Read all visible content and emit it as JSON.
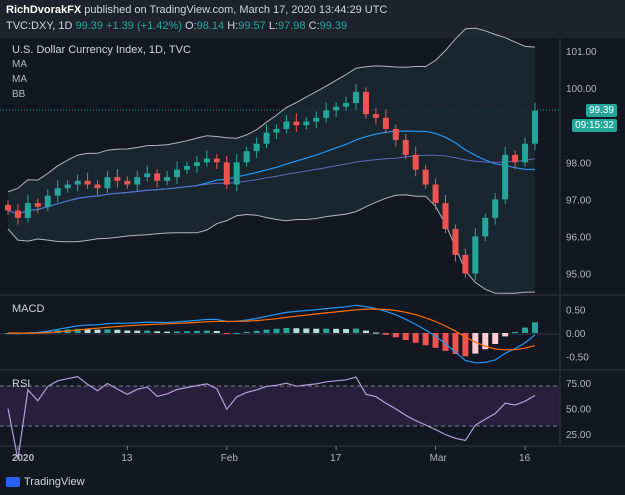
{
  "header": {
    "publisher": "RichDvorakFX",
    "published_text": "published on TradingView.com, March 17, 2020 13:44:29 UTC",
    "symbol": "TVC:DXY, 1D",
    "last": "99.39",
    "change": "+1.39 (+1.42%)",
    "open_label": "O:",
    "open": "98.14",
    "high_label": "H:",
    "high": "99.57",
    "low_label": "L:",
    "low": "97.98",
    "close_label": "C:",
    "close": "99.39"
  },
  "main_pane": {
    "title": "U.S. Dollar Currency Index, 1D, TVC",
    "indicators": [
      "MA",
      "MA",
      "BB"
    ],
    "price_badge": "99.39",
    "time_badge": "09:15:32"
  },
  "macd_pane": {
    "title": "MACD"
  },
  "rsi_pane": {
    "title": "RSI"
  },
  "x_labels": [
    "2020",
    "13",
    "Feb",
    "17",
    "Mar",
    "16"
  ],
  "brand": {
    "name": "TradingView"
  },
  "colors": {
    "up": "#26a69a",
    "down": "#ef5350",
    "ma_blue": "#2196f3",
    "bb": "#b2b5be",
    "rsi": "#b39ddb"
  },
  "chart_data": [
    {
      "type": "candlestick",
      "title": "U.S. Dollar Currency Index, 1D, TVC",
      "y_ticks": [
        101.0,
        100.0,
        99.0,
        98.0,
        97.0,
        96.0,
        95.0
      ],
      "y_tick_labels": [
        "101.00",
        "100.00",
        "98.00",
        "97.00",
        "96.00",
        "95.00"
      ],
      "ylim": [
        94.5,
        101.3
      ],
      "close_series": [
        96.7,
        96.5,
        96.9,
        96.8,
        97.1,
        97.3,
        97.4,
        97.5,
        97.4,
        97.3,
        97.6,
        97.5,
        97.4,
        97.6,
        97.7,
        97.5,
        97.6,
        97.8,
        97.9,
        98.0,
        98.1,
        98.0,
        97.4,
        98.0,
        98.3,
        98.5,
        98.8,
        98.9,
        99.1,
        99.0,
        99.1,
        99.2,
        99.4,
        99.5,
        99.6,
        99.9,
        99.3,
        99.2,
        98.9,
        98.6,
        98.2,
        97.8,
        97.4,
        96.9,
        96.2,
        95.5,
        95.0,
        96.0,
        96.5,
        97.0,
        98.2,
        98.0,
        98.5,
        99.39
      ]
    },
    {
      "type": "line",
      "title": "MACD",
      "y_tick_labels": [
        "0.50",
        "0.00",
        "-0.50"
      ],
      "ylim": [
        -0.75,
        0.75
      ]
    },
    {
      "type": "line",
      "title": "RSI",
      "y_tick_labels": [
        "75.00",
        "50.00",
        "25.00"
      ],
      "ylim": [
        15,
        85
      ],
      "bands": [
        30,
        70
      ]
    }
  ]
}
